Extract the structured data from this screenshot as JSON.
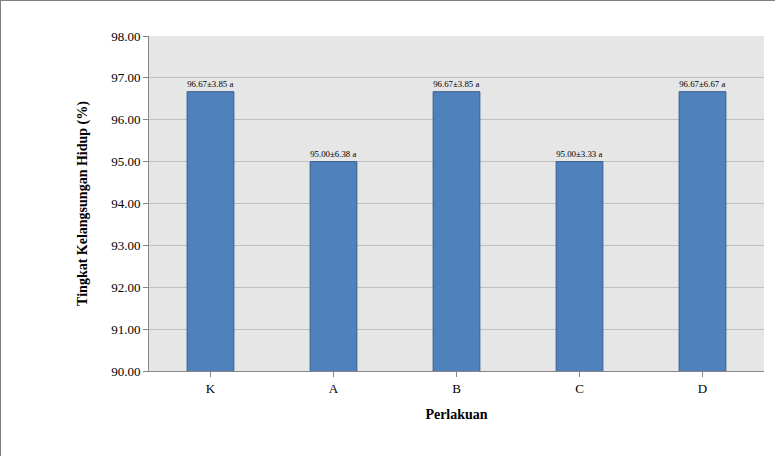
{
  "chart_data": {
    "type": "bar",
    "x_label": "Perlakuan",
    "y_label": "Tingkat Kelangsungan Hidup (%)",
    "categories": [
      "K",
      "A",
      "B",
      "C",
      "D"
    ],
    "values": [
      96.67,
      95.0,
      96.67,
      95.0,
      96.67
    ],
    "value_labels": [
      "96.67±3.85 a",
      "95.00±6.38 a",
      "96.67±3.85 a",
      "95.00±3.33 a",
      "96.67±6.67 a"
    ],
    "data_labels": true,
    "color": "#4f81bd",
    "ylim": [
      90,
      98
    ],
    "yticks": [
      {
        "value": 90,
        "label": "90.00"
      },
      {
        "value": 91,
        "label": "91.00"
      },
      {
        "value": 92,
        "label": "92.00"
      },
      {
        "value": 93,
        "label": "93.00"
      },
      {
        "value": 94,
        "label": "94.00"
      },
      {
        "value": 95,
        "label": "95.00"
      },
      {
        "value": 96,
        "label": "96.00"
      },
      {
        "value": 97,
        "label": "97.00"
      },
      {
        "value": 98,
        "label": "98.00"
      }
    ],
    "grid": true
  }
}
